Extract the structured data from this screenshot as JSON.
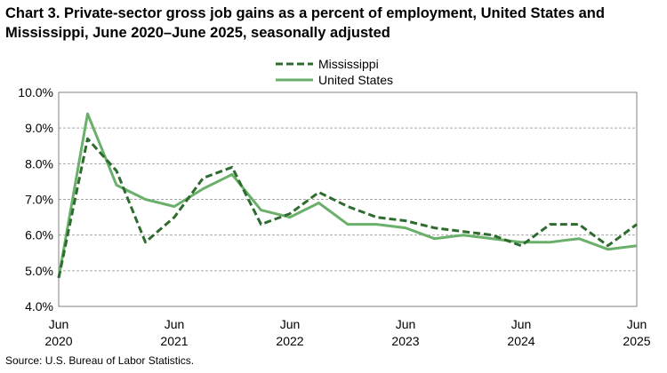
{
  "title": "Chart 3. Private-sector gross job gains as a percent of employment, United States and Mississippi, June 2020–June 2025, seasonally adjusted",
  "source": "Source: U.S. Bureau of Labor Statistics.",
  "chart_data": {
    "type": "line",
    "title": "Chart 3. Private-sector gross job gains as a percent of employment, United States and Mississippi, June 2020–June 2025, seasonally adjusted",
    "xlabel": "",
    "ylabel": "",
    "x": [
      "Jun 2020",
      "Sep 2020",
      "Dec 2020",
      "Mar 2021",
      "Jun 2021",
      "Sep 2021",
      "Dec 2021",
      "Mar 2022",
      "Jun 2022",
      "Sep 2022",
      "Dec 2022",
      "Mar 2023",
      "Jun 2023",
      "Sep 2023",
      "Dec 2023",
      "Mar 2024",
      "Jun 2024",
      "Sep 2024",
      "Dec 2024",
      "Mar 2025",
      "Jun 2025"
    ],
    "x_tick_labels": [
      {
        "month": "Jun",
        "year": "2020"
      },
      {
        "month": "Jun",
        "year": "2021"
      },
      {
        "month": "Jun",
        "year": "2022"
      },
      {
        "month": "Jun",
        "year": "2023"
      },
      {
        "month": "Jun",
        "year": "2024"
      },
      {
        "month": "Jun",
        "year": "2025"
      }
    ],
    "ylim": [
      4.0,
      10.0
    ],
    "y_ticks": [
      "4.0%",
      "5.0%",
      "6.0%",
      "7.0%",
      "8.0%",
      "9.0%",
      "10.0%"
    ],
    "grid": "horizontal dashed",
    "legend_position": "top-center",
    "series": [
      {
        "name": "Mississippi",
        "style": "dashed",
        "color": "#2e6b2e",
        "values": [
          4.8,
          8.7,
          7.8,
          5.8,
          6.5,
          7.6,
          7.9,
          6.3,
          6.6,
          7.2,
          6.8,
          6.5,
          6.4,
          6.2,
          6.1,
          6.0,
          5.7,
          6.3,
          6.3,
          5.7,
          6.3
        ]
      },
      {
        "name": "United States",
        "style": "solid",
        "color": "#6ab06a",
        "values": [
          4.8,
          9.4,
          7.4,
          7.0,
          6.8,
          7.3,
          7.7,
          6.7,
          6.5,
          6.9,
          6.3,
          6.3,
          6.2,
          5.9,
          6.0,
          5.9,
          5.8,
          5.8,
          5.9,
          5.6,
          5.7
        ]
      }
    ]
  }
}
